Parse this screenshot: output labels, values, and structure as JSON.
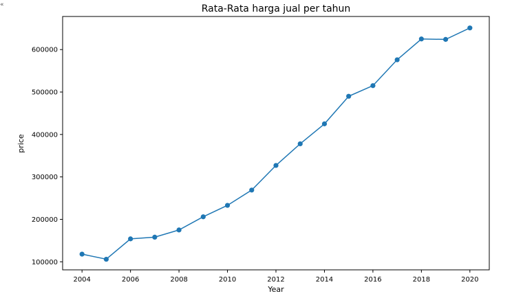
{
  "corner_mark": "«",
  "chart_data": {
    "type": "line",
    "title": "Rata-Rata harga jual per tahun",
    "xlabel": "Year",
    "ylabel": "price",
    "x": [
      2004,
      2005,
      2006,
      2007,
      2008,
      2009,
      2010,
      2011,
      2012,
      2013,
      2014,
      2015,
      2016,
      2017,
      2018,
      2019,
      2020
    ],
    "series": [
      {
        "values": [
          118000,
          106000,
          154000,
          158000,
          175000,
          206000,
          233000,
          269000,
          327000,
          378000,
          425000,
          490000,
          515000,
          576000,
          625000,
          624000,
          651000
        ]
      }
    ],
    "x_ticks": [
      "2004",
      "2006",
      "2008",
      "2010",
      "2012",
      "2014",
      "2016",
      "2018",
      "2020"
    ],
    "y_ticks": [
      "100000",
      "200000",
      "300000",
      "400000",
      "500000",
      "600000"
    ],
    "xlim": [
      2003.2,
      2020.8
    ],
    "ylim": [
      81000,
      678000
    ],
    "grid": false,
    "color": "#1f77b4"
  }
}
